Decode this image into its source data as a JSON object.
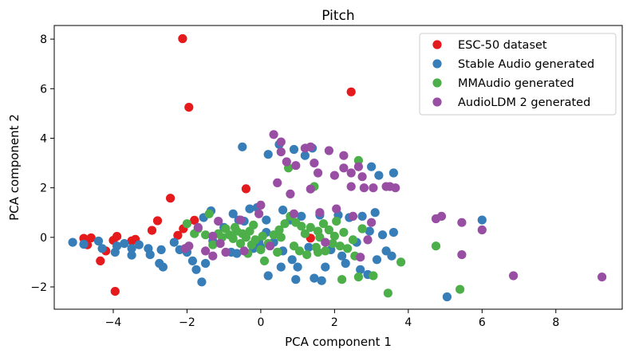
{
  "chart_data": {
    "type": "scatter",
    "title": "Pitch",
    "xlabel": "PCA component 1",
    "ylabel": "PCA component 2",
    "xlim": [
      -5.6,
      9.8
    ],
    "ylim": [
      -2.9,
      8.55
    ],
    "xticks": [
      -4,
      -2,
      0,
      2,
      4,
      6,
      8
    ],
    "yticks": [
      -2,
      0,
      2,
      4,
      6,
      8
    ],
    "grid": false,
    "legend_position": "top-right",
    "series": [
      {
        "name": "ESC-50 dataset",
        "color": "#e41a1c",
        "points": [
          [
            -2.12,
            8.02
          ],
          [
            -1.95,
            5.25
          ],
          [
            2.45,
            5.87
          ],
          [
            -0.4,
            1.96
          ],
          [
            -2.45,
            1.58
          ],
          [
            -2.8,
            0.67
          ],
          [
            -1.8,
            0.69
          ],
          [
            -2.95,
            0.28
          ],
          [
            -2.1,
            0.35
          ],
          [
            -2.25,
            0.08
          ],
          [
            -4.8,
            -0.04
          ],
          [
            -4.6,
            -0.02
          ],
          [
            -4.7,
            -0.3
          ],
          [
            -4.2,
            -0.55
          ],
          [
            -4.0,
            -0.12
          ],
          [
            -3.9,
            0.04
          ],
          [
            -3.5,
            -0.14
          ],
          [
            -3.4,
            -0.08
          ],
          [
            -4.35,
            -0.95
          ],
          [
            -3.95,
            -2.18
          ],
          [
            1.35,
            -0.03
          ]
        ]
      },
      {
        "name": "Stable Audio generated",
        "color": "#377eb8",
        "points": [
          [
            -5.1,
            -0.2
          ],
          [
            -4.8,
            -0.28
          ],
          [
            -4.4,
            -0.15
          ],
          [
            -4.3,
            -0.45
          ],
          [
            -3.9,
            -0.35
          ],
          [
            -3.7,
            -0.25
          ],
          [
            -3.95,
            -0.6
          ],
          [
            -3.5,
            -0.45
          ],
          [
            -3.3,
            -0.3
          ],
          [
            -3.05,
            -0.45
          ],
          [
            -3.5,
            -0.72
          ],
          [
            -3.0,
            -0.7
          ],
          [
            -2.75,
            -1.05
          ],
          [
            -2.65,
            -1.2
          ],
          [
            -2.7,
            -0.5
          ],
          [
            -2.35,
            -0.2
          ],
          [
            -2.2,
            -0.5
          ],
          [
            -2.0,
            -0.6
          ],
          [
            -1.85,
            -0.95
          ],
          [
            -1.75,
            -1.3
          ],
          [
            -1.6,
            -1.8
          ],
          [
            -1.5,
            -1.05
          ],
          [
            -1.55,
            0.8
          ],
          [
            -1.35,
            1.07
          ],
          [
            -1.3,
            -0.15
          ],
          [
            -1.0,
            0.4
          ],
          [
            -0.75,
            0.95
          ],
          [
            -0.6,
            0.7
          ],
          [
            -0.45,
            0.65
          ],
          [
            -0.5,
            3.65
          ],
          [
            -0.3,
            1.15
          ],
          [
            -0.1,
            1.2
          ],
          [
            0.15,
            0.7
          ],
          [
            0.2,
            3.35
          ],
          [
            0.5,
            3.75
          ],
          [
            0.9,
            3.55
          ],
          [
            1.2,
            3.3
          ],
          [
            1.4,
            3.6
          ],
          [
            0.6,
            1.1
          ],
          [
            0.8,
            0.7
          ],
          [
            1.1,
            0.85
          ],
          [
            1.6,
            0.9
          ],
          [
            2.1,
            0.9
          ],
          [
            2.4,
            0.8
          ],
          [
            2.75,
            0.85
          ],
          [
            3.1,
            1.0
          ],
          [
            3.2,
            2.5
          ],
          [
            3.0,
            2.85
          ],
          [
            3.6,
            2.6
          ],
          [
            2.95,
            0.25
          ],
          [
            3.3,
            0.1
          ],
          [
            3.6,
            0.2
          ],
          [
            3.4,
            -0.55
          ],
          [
            3.55,
            -0.75
          ],
          [
            3.15,
            -0.9
          ],
          [
            2.7,
            -1.3
          ],
          [
            2.9,
            -1.5
          ],
          [
            2.3,
            -1.05
          ],
          [
            1.75,
            -1.2
          ],
          [
            1.45,
            -1.65
          ],
          [
            1.65,
            -1.75
          ],
          [
            1.0,
            -1.2
          ],
          [
            0.95,
            -1.7
          ],
          [
            0.55,
            -1.2
          ],
          [
            0.2,
            -1.55
          ],
          [
            0.0,
            -0.4
          ],
          [
            -0.2,
            -0.45
          ],
          [
            -0.8,
            -0.6
          ],
          [
            -0.65,
            -0.65
          ],
          [
            0.35,
            -0.2
          ],
          [
            0.6,
            -0.55
          ],
          [
            1.9,
            -0.5
          ],
          [
            2.2,
            -0.75
          ],
          [
            2.6,
            -0.2
          ],
          [
            5.05,
            -2.4
          ],
          [
            6.0,
            0.7
          ],
          [
            0.15,
            0.2
          ],
          [
            -0.05,
            -0.2
          ],
          [
            0.85,
            -0.9
          ],
          [
            1.3,
            -0.4
          ]
        ]
      },
      {
        "name": "MMAudio generated",
        "color": "#4daf4a",
        "points": [
          [
            -2.0,
            0.55
          ],
          [
            -1.7,
            0.35
          ],
          [
            -1.5,
            0.1
          ],
          [
            -1.3,
            -0.3
          ],
          [
            -1.15,
            0.15
          ],
          [
            -1.05,
            0.0
          ],
          [
            -0.95,
            0.35
          ],
          [
            -0.85,
            0.1
          ],
          [
            -0.75,
            -0.05
          ],
          [
            -0.65,
            0.25
          ],
          [
            -0.5,
            0.15
          ],
          [
            -0.4,
            0.0
          ],
          [
            -0.3,
            0.25
          ],
          [
            -0.55,
            -0.25
          ],
          [
            -0.25,
            -0.3
          ],
          [
            -0.15,
            -0.1
          ],
          [
            0.05,
            0.05
          ],
          [
            0.2,
            -0.25
          ],
          [
            0.35,
            0.1
          ],
          [
            0.5,
            0.3
          ],
          [
            0.65,
            0.55
          ],
          [
            0.8,
            0.85
          ],
          [
            0.95,
            0.6
          ],
          [
            1.1,
            0.45
          ],
          [
            1.2,
            0.15
          ],
          [
            1.35,
            0.4
          ],
          [
            1.55,
            0.25
          ],
          [
            1.7,
            0.55
          ],
          [
            1.85,
            0.3
          ],
          [
            2.05,
            0.65
          ],
          [
            2.25,
            0.2
          ],
          [
            2.5,
            -0.1
          ],
          [
            2.65,
            3.1
          ],
          [
            2.75,
            0.35
          ],
          [
            1.45,
            2.05
          ],
          [
            0.75,
            2.8
          ],
          [
            -1.4,
            0.95
          ],
          [
            -1.8,
            0.15
          ],
          [
            0.9,
            -0.35
          ],
          [
            1.05,
            -0.55
          ],
          [
            1.25,
            -0.7
          ],
          [
            1.55,
            -0.6
          ],
          [
            1.75,
            -0.55
          ],
          [
            1.95,
            -0.25
          ],
          [
            2.15,
            -0.35
          ],
          [
            2.35,
            -0.45
          ],
          [
            2.55,
            -0.75
          ],
          [
            2.2,
            -1.7
          ],
          [
            2.65,
            -1.6
          ],
          [
            3.05,
            -1.55
          ],
          [
            3.45,
            -2.25
          ],
          [
            3.8,
            -1.0
          ],
          [
            4.75,
            -0.35
          ],
          [
            5.4,
            -2.1
          ],
          [
            0.1,
            -0.95
          ],
          [
            0.45,
            -0.6
          ],
          [
            -0.35,
            -0.65
          ],
          [
            0.0,
            -0.5
          ],
          [
            1.6,
            0.0
          ],
          [
            0.55,
            0.0
          ],
          [
            -0.7,
            0.4
          ],
          [
            -0.2,
            0.5
          ],
          [
            1.5,
            -0.4
          ],
          [
            2.0,
            0.05
          ]
        ]
      },
      {
        "name": "AudioLDM 2 generated",
        "color": "#984ea3",
        "points": [
          [
            0.35,
            4.15
          ],
          [
            0.55,
            3.85
          ],
          [
            0.55,
            3.45
          ],
          [
            1.2,
            3.6
          ],
          [
            1.35,
            3.65
          ],
          [
            1.85,
            3.5
          ],
          [
            2.25,
            3.3
          ],
          [
            2.25,
            2.8
          ],
          [
            0.7,
            3.05
          ],
          [
            0.95,
            2.9
          ],
          [
            1.45,
            3.0
          ],
          [
            1.55,
            2.6
          ],
          [
            2.0,
            2.5
          ],
          [
            2.65,
            2.85
          ],
          [
            2.75,
            2.45
          ],
          [
            2.45,
            2.6
          ],
          [
            2.45,
            2.05
          ],
          [
            2.8,
            2.0
          ],
          [
            3.05,
            2.0
          ],
          [
            3.4,
            2.05
          ],
          [
            3.5,
            2.05
          ],
          [
            3.65,
            2.0
          ],
          [
            0.45,
            2.2
          ],
          [
            0.8,
            1.75
          ],
          [
            1.35,
            1.95
          ],
          [
            0.0,
            1.3
          ],
          [
            -0.05,
            0.95
          ],
          [
            -0.55,
            0.7
          ],
          [
            -1.15,
            0.65
          ],
          [
            -1.7,
            0.4
          ],
          [
            -1.3,
            0.05
          ],
          [
            -1.1,
            -0.25
          ],
          [
            -1.5,
            -0.55
          ],
          [
            -1.95,
            -0.35
          ],
          [
            -2.05,
            -0.45
          ],
          [
            -1.3,
            -0.75
          ],
          [
            -0.95,
            -0.6
          ],
          [
            -0.45,
            -0.55
          ],
          [
            0.9,
            0.95
          ],
          [
            1.6,
            1.0
          ],
          [
            2.05,
            1.15
          ],
          [
            2.5,
            0.85
          ],
          [
            3.0,
            0.6
          ],
          [
            2.9,
            -0.1
          ],
          [
            2.7,
            -0.8
          ],
          [
            4.75,
            0.75
          ],
          [
            4.9,
            0.85
          ],
          [
            5.45,
            0.6
          ],
          [
            5.45,
            -0.7
          ],
          [
            6.0,
            0.3
          ],
          [
            6.85,
            -1.55
          ],
          [
            9.25,
            -1.6
          ],
          [
            0.25,
            -0.35
          ],
          [
            1.75,
            -0.2
          ]
        ]
      }
    ]
  }
}
